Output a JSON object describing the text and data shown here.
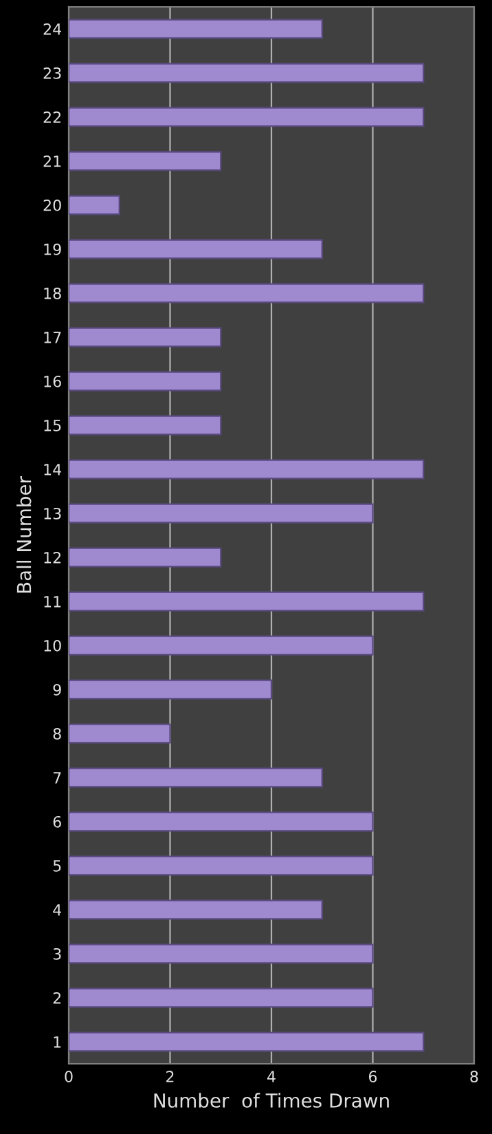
{
  "chart_data": {
    "type": "bar",
    "orientation": "horizontal",
    "xlabel": "Number  of Times Drawn",
    "ylabel": "Ball Number",
    "categories": [
      "24",
      "23",
      "22",
      "21",
      "20",
      "19",
      "18",
      "17",
      "16",
      "15",
      "14",
      "13",
      "12",
      "11",
      "10",
      "9",
      "8",
      "7",
      "6",
      "5",
      "4",
      "3",
      "2",
      "1"
    ],
    "values": [
      5,
      7,
      7,
      3,
      1,
      5,
      7,
      3,
      3,
      3,
      7,
      6,
      3,
      7,
      6,
      4,
      2,
      5,
      6,
      6,
      5,
      6,
      6,
      7
    ],
    "color": "#9f8ad0",
    "xlim": [
      0,
      8
    ],
    "xticks": [
      0,
      2,
      4,
      6,
      8
    ],
    "grid": "x"
  }
}
